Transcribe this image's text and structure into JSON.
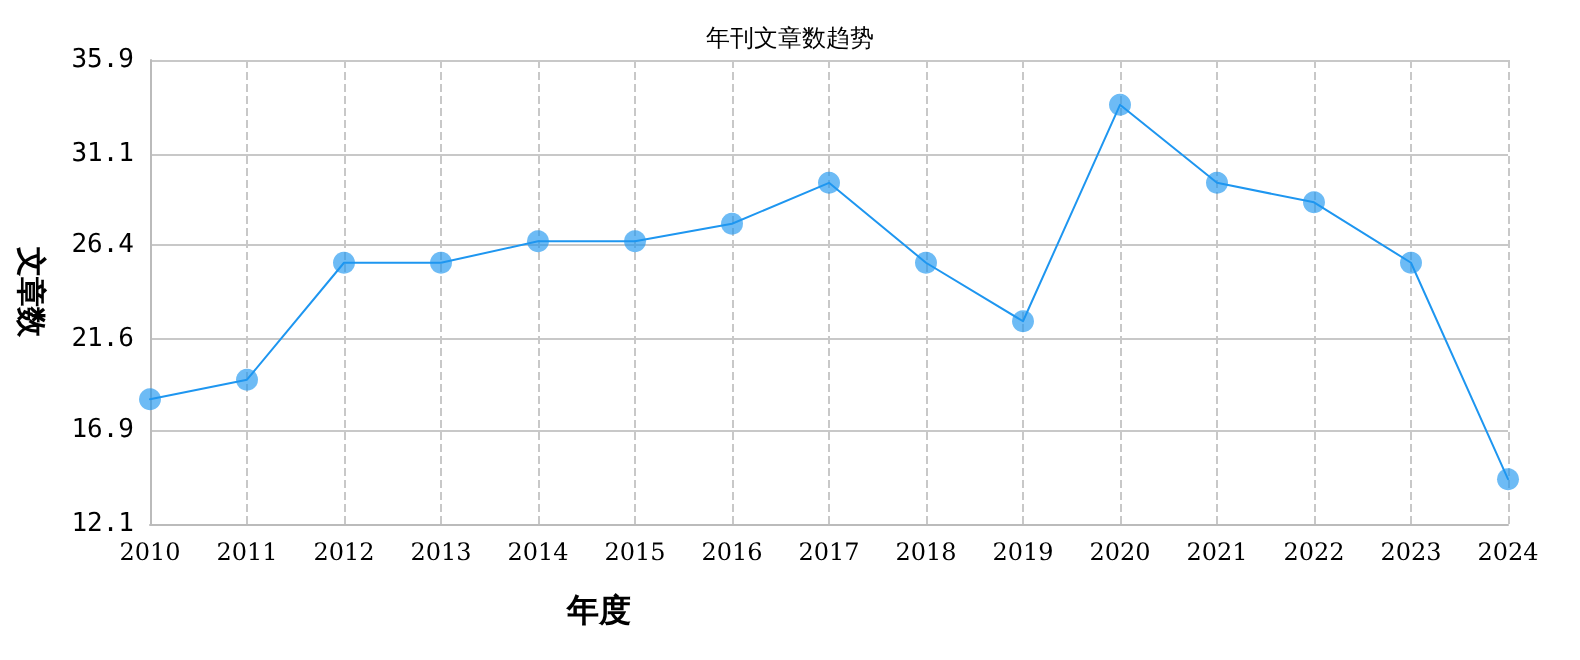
{
  "chart_data": {
    "type": "line",
    "title": "年刊文章数趋势",
    "xlabel": "年度",
    "ylabel": "文章数",
    "categories": [
      "2010",
      "2011",
      "2012",
      "2013",
      "2014",
      "2015",
      "2016",
      "2017",
      "2018",
      "2019",
      "2020",
      "2021",
      "2022",
      "2023",
      "2024"
    ],
    "series": [
      {
        "color": "#1e96f0",
        "values": [
          18.5,
          19.5,
          25.5,
          25.5,
          26.6,
          26.6,
          27.5,
          29.6,
          25.5,
          22.5,
          33.6,
          29.6,
          28.6,
          25.5,
          14.4
        ]
      }
    ],
    "ylim": [
      12.1,
      35.9
    ],
    "yticks": [
      12.1,
      16.9,
      21.6,
      26.4,
      31.1,
      35.9
    ],
    "grid": true,
    "marker": "circle",
    "line_style": "solid"
  }
}
